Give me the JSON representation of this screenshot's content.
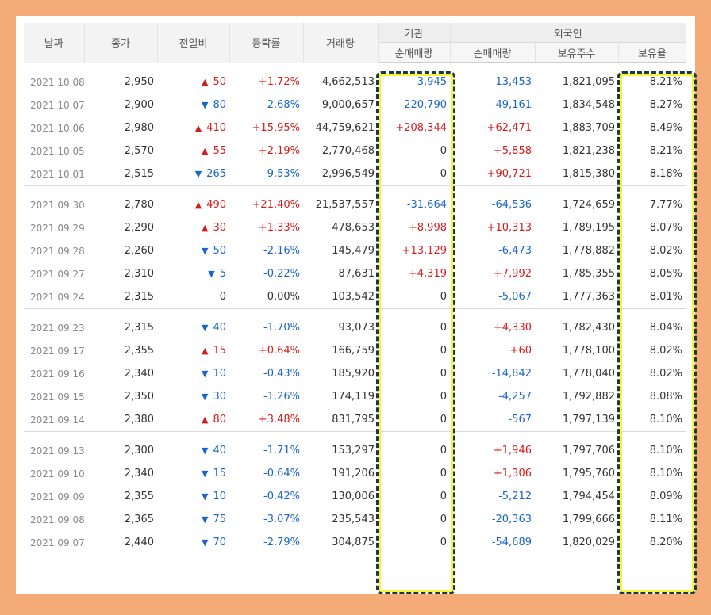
{
  "headers": {
    "date": "날짜",
    "close": "종가",
    "change": "전일비",
    "rate": "등락률",
    "volume": "거래량",
    "institution": "기관",
    "foreign": "외국인",
    "inst_net": "순매매량",
    "foreign_net": "순매매량",
    "holdings": "보유주수",
    "ratio": "보유율"
  },
  "colors": {
    "up": "#d41c1c",
    "down": "#1a65c9",
    "highlight": "#fbf23c",
    "frame": "#f4ab78"
  },
  "groups": [
    [
      {
        "date": "2021.10.08",
        "close": "2,950",
        "dir": "up",
        "change": "50",
        "rate": "+1.72%",
        "volume": "4,662,513",
        "inst": "-3,945",
        "frgn": "-13,453",
        "hold": "1,821,095",
        "ratio": "8.21%"
      },
      {
        "date": "2021.10.07",
        "close": "2,900",
        "dir": "down",
        "change": "80",
        "rate": "-2.68%",
        "volume": "9,000,657",
        "inst": "-220,790",
        "frgn": "-49,161",
        "hold": "1,834,548",
        "ratio": "8.27%"
      },
      {
        "date": "2021.10.06",
        "close": "2,980",
        "dir": "up",
        "change": "410",
        "rate": "+15.95%",
        "volume": "44,759,621",
        "inst": "+208,344",
        "frgn": "+62,471",
        "hold": "1,883,709",
        "ratio": "8.49%"
      },
      {
        "date": "2021.10.05",
        "close": "2,570",
        "dir": "up",
        "change": "55",
        "rate": "+2.19%",
        "volume": "2,770,468",
        "inst": "0",
        "frgn": "+5,858",
        "hold": "1,821,238",
        "ratio": "8.21%"
      },
      {
        "date": "2021.10.01",
        "close": "2,515",
        "dir": "down",
        "change": "265",
        "rate": "-9.53%",
        "volume": "2,996,549",
        "inst": "0",
        "frgn": "+90,721",
        "hold": "1,815,380",
        "ratio": "8.18%"
      }
    ],
    [
      {
        "date": "2021.09.30",
        "close": "2,780",
        "dir": "up",
        "change": "490",
        "rate": "+21.40%",
        "volume": "21,537,557",
        "inst": "-31,664",
        "frgn": "-64,536",
        "hold": "1,724,659",
        "ratio": "7.77%"
      },
      {
        "date": "2021.09.29",
        "close": "2,290",
        "dir": "up",
        "change": "30",
        "rate": "+1.33%",
        "volume": "478,653",
        "inst": "+8,998",
        "frgn": "+10,313",
        "hold": "1,789,195",
        "ratio": "8.07%"
      },
      {
        "date": "2021.09.28",
        "close": "2,260",
        "dir": "down",
        "change": "50",
        "rate": "-2.16%",
        "volume": "145,479",
        "inst": "+13,129",
        "frgn": "-6,473",
        "hold": "1,778,882",
        "ratio": "8.02%"
      },
      {
        "date": "2021.09.27",
        "close": "2,310",
        "dir": "down",
        "change": "5",
        "rate": "-0.22%",
        "volume": "87,631",
        "inst": "+4,319",
        "frgn": "+7,992",
        "hold": "1,785,355",
        "ratio": "8.05%"
      },
      {
        "date": "2021.09.24",
        "close": "2,315",
        "dir": "none",
        "change": "0",
        "rate": "0.00%",
        "volume": "103,542",
        "inst": "0",
        "frgn": "-5,067",
        "hold": "1,777,363",
        "ratio": "8.01%"
      }
    ],
    [
      {
        "date": "2021.09.23",
        "close": "2,315",
        "dir": "down",
        "change": "40",
        "rate": "-1.70%",
        "volume": "93,073",
        "inst": "0",
        "frgn": "+4,330",
        "hold": "1,782,430",
        "ratio": "8.04%"
      },
      {
        "date": "2021.09.17",
        "close": "2,355",
        "dir": "up",
        "change": "15",
        "rate": "+0.64%",
        "volume": "166,759",
        "inst": "0",
        "frgn": "+60",
        "hold": "1,778,100",
        "ratio": "8.02%"
      },
      {
        "date": "2021.09.16",
        "close": "2,340",
        "dir": "down",
        "change": "10",
        "rate": "-0.43%",
        "volume": "185,920",
        "inst": "0",
        "frgn": "-14,842",
        "hold": "1,778,040",
        "ratio": "8.02%"
      },
      {
        "date": "2021.09.15",
        "close": "2,350",
        "dir": "down",
        "change": "30",
        "rate": "-1.26%",
        "volume": "174,119",
        "inst": "0",
        "frgn": "-4,257",
        "hold": "1,792,882",
        "ratio": "8.08%"
      },
      {
        "date": "2021.09.14",
        "close": "2,380",
        "dir": "up",
        "change": "80",
        "rate": "+3.48%",
        "volume": "831,795",
        "inst": "0",
        "frgn": "-567",
        "hold": "1,797,139",
        "ratio": "8.10%"
      }
    ],
    [
      {
        "date": "2021.09.13",
        "close": "2,300",
        "dir": "down",
        "change": "40",
        "rate": "-1.71%",
        "volume": "153,297",
        "inst": "0",
        "frgn": "+1,946",
        "hold": "1,797,706",
        "ratio": "8.10%"
      },
      {
        "date": "2021.09.10",
        "close": "2,340",
        "dir": "down",
        "change": "15",
        "rate": "-0.64%",
        "volume": "191,206",
        "inst": "0",
        "frgn": "+1,306",
        "hold": "1,795,760",
        "ratio": "8.10%"
      },
      {
        "date": "2021.09.09",
        "close": "2,355",
        "dir": "down",
        "change": "10",
        "rate": "-0.42%",
        "volume": "130,006",
        "inst": "0",
        "frgn": "-5,212",
        "hold": "1,794,454",
        "ratio": "8.09%"
      },
      {
        "date": "2021.09.08",
        "close": "2,365",
        "dir": "down",
        "change": "75",
        "rate": "-3.07%",
        "volume": "235,543",
        "inst": "0",
        "frgn": "-20,363",
        "hold": "1,799,666",
        "ratio": "8.11%"
      },
      {
        "date": "2021.09.07",
        "close": "2,440",
        "dir": "down",
        "change": "70",
        "rate": "-2.79%",
        "volume": "304,875",
        "inst": "0",
        "frgn": "-54,689",
        "hold": "1,820,029",
        "ratio": "8.20%"
      }
    ]
  ]
}
